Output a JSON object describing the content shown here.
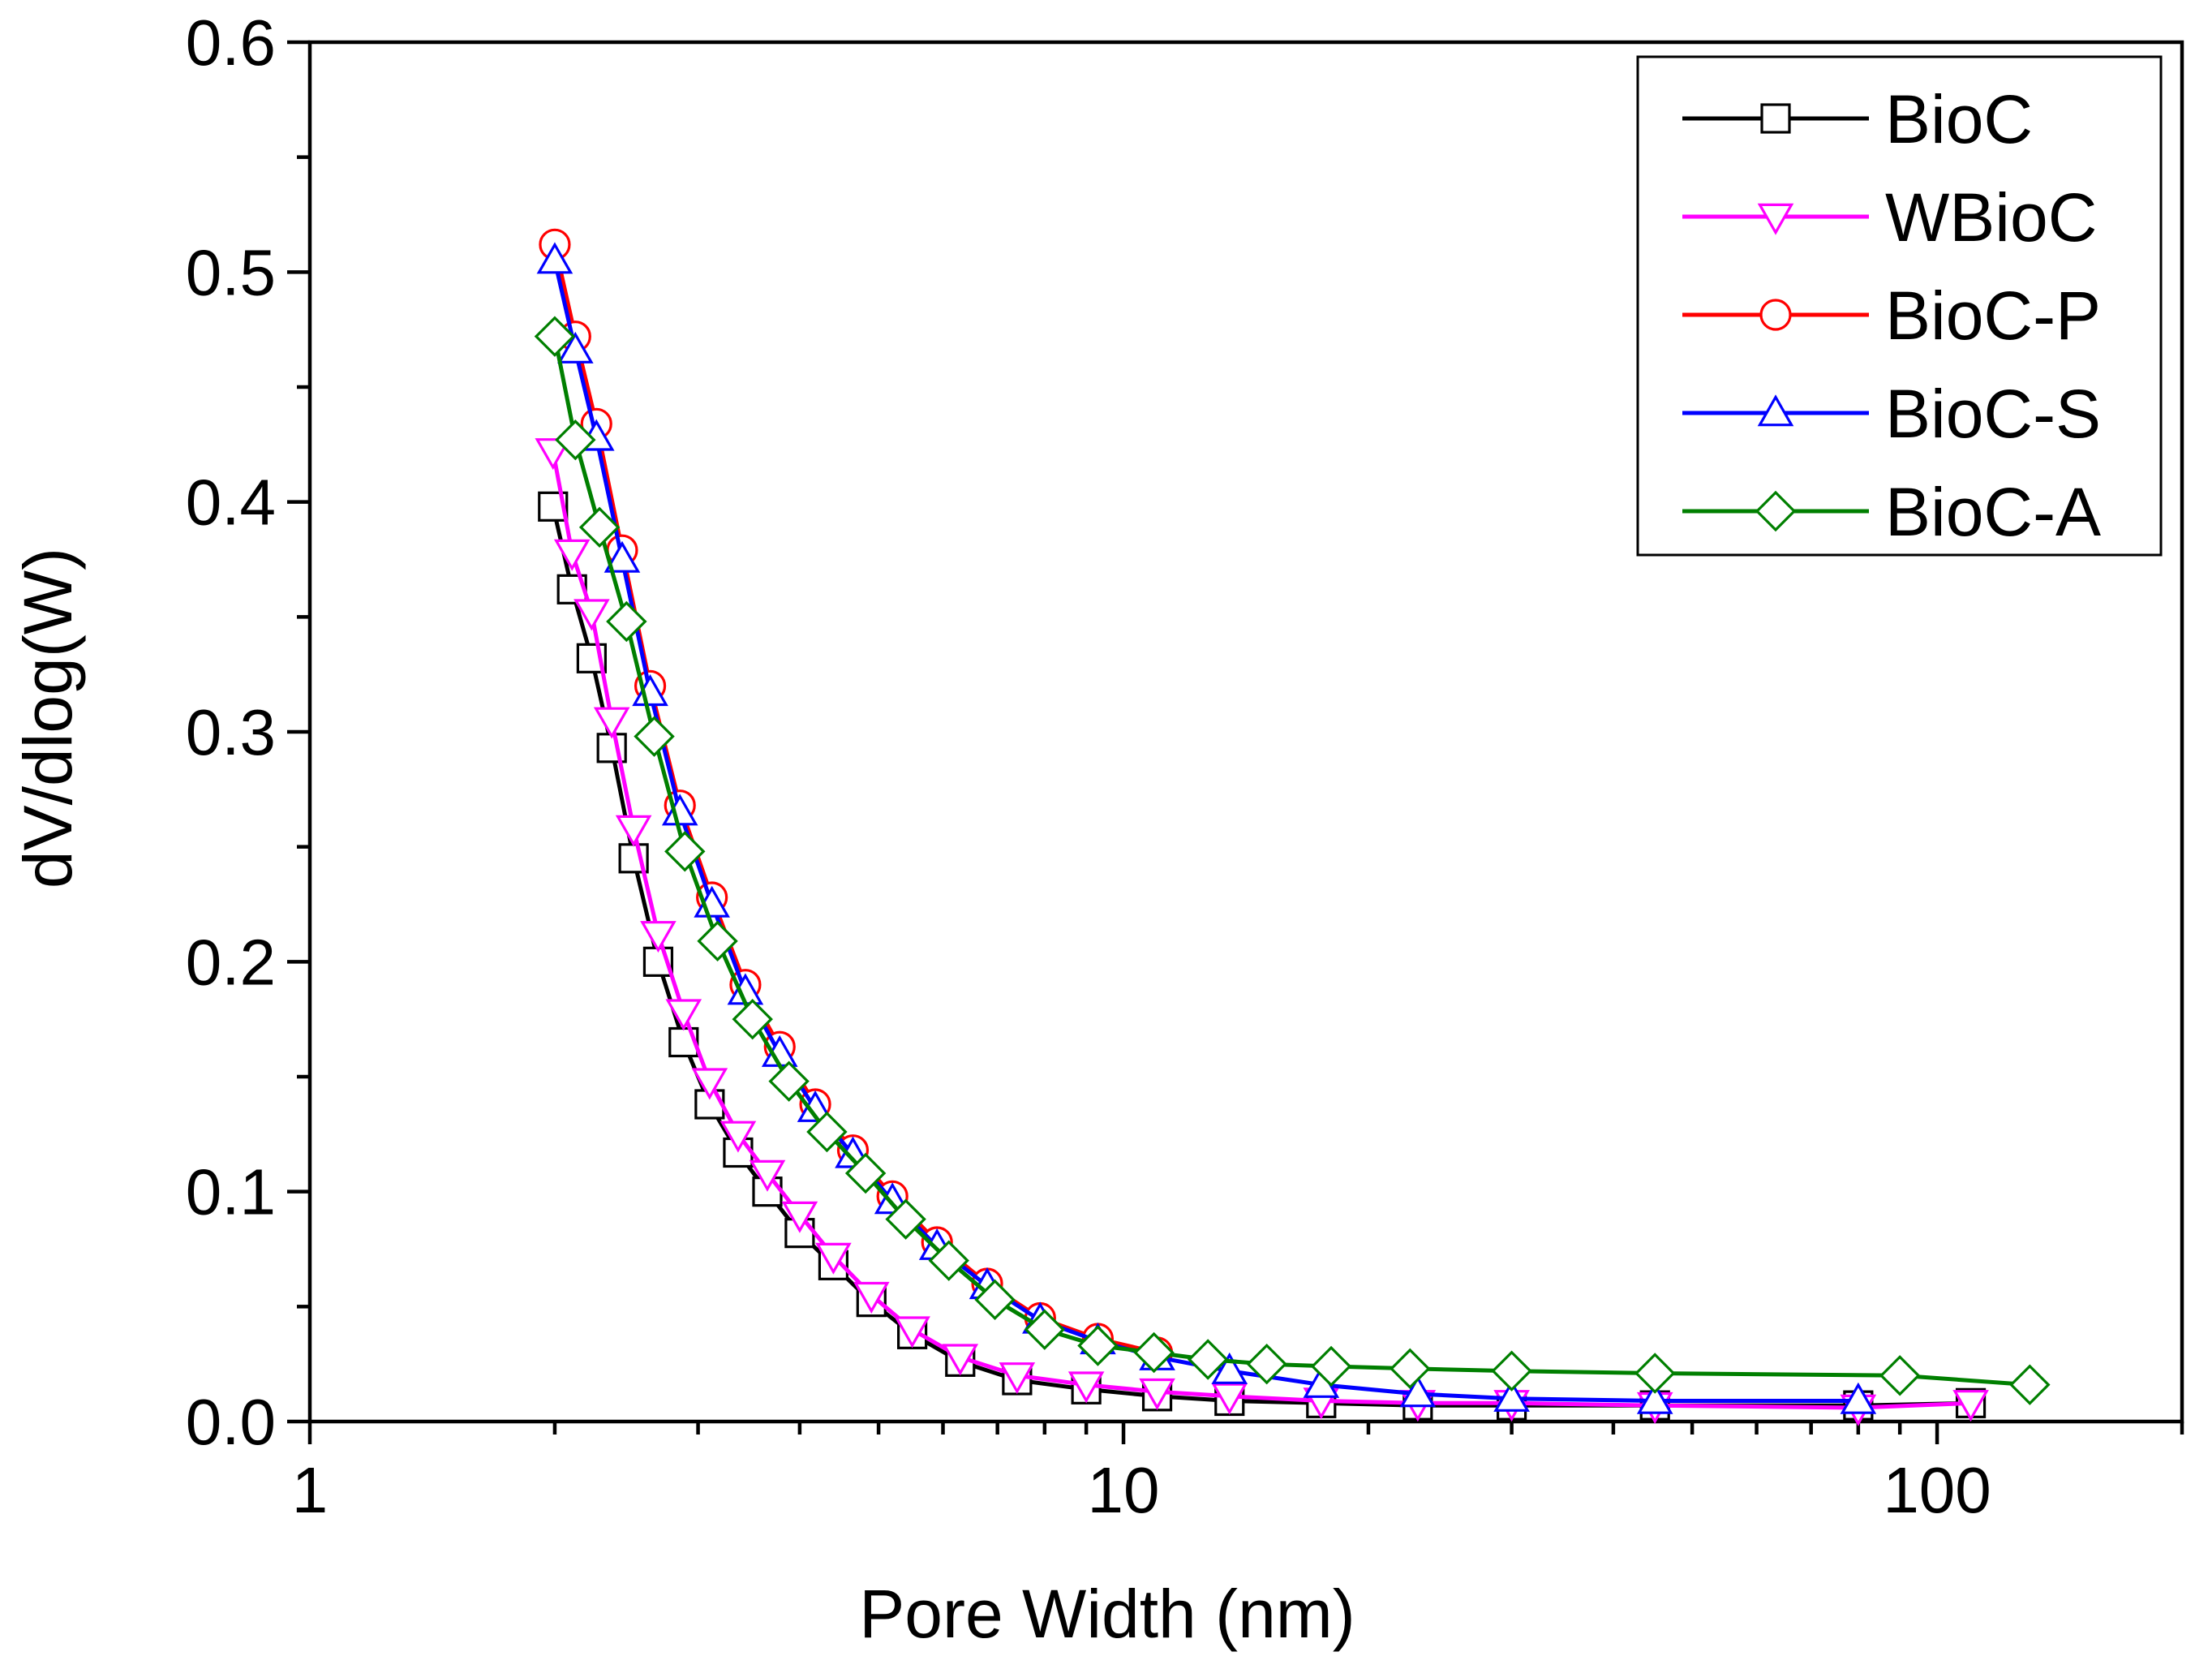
{
  "chart_data": {
    "type": "line",
    "title": "",
    "xlabel": "Pore Width (nm)",
    "ylabel": "dV/dlog(W)",
    "xscale": "log",
    "xlim": [
      1,
      200
    ],
    "ylim": [
      0,
      0.6
    ],
    "xticks": [
      1,
      10,
      100
    ],
    "xtick_labels": [
      "1",
      "10",
      "100"
    ],
    "yticks": [
      0,
      0.1,
      0.2,
      0.3,
      0.4,
      0.5,
      0.6
    ],
    "ytick_labels": [
      "0.0",
      "0.1",
      "0.2",
      "0.3",
      "0.4",
      "0.5",
      "0.6"
    ],
    "grid": false,
    "legend_position": "top-right",
    "series": [
      {
        "name": "BioC",
        "color": "#000000",
        "marker": "square",
        "x": [
          1.99,
          2.1,
          2.22,
          2.35,
          2.5,
          2.68,
          2.88,
          3.1,
          3.36,
          3.65,
          4.0,
          4.4,
          4.9,
          5.5,
          6.3,
          7.4,
          9.0,
          11.0,
          13.5,
          17.5,
          23,
          30,
          45,
          80,
          110
        ],
        "y": [
          0.398,
          0.362,
          0.332,
          0.293,
          0.245,
          0.2,
          0.165,
          0.138,
          0.117,
          0.1,
          0.082,
          0.068,
          0.052,
          0.038,
          0.026,
          0.018,
          0.014,
          0.011,
          0.009,
          0.008,
          0.007,
          0.007,
          0.007,
          0.007,
          0.008
        ]
      },
      {
        "name": "WBioC",
        "color": "#ff00ff",
        "marker": "triangle-down",
        "x": [
          1.99,
          2.1,
          2.22,
          2.35,
          2.5,
          2.68,
          2.88,
          3.1,
          3.36,
          3.65,
          4.0,
          4.4,
          4.9,
          5.5,
          6.3,
          7.4,
          9.0,
          11.0,
          13.5,
          17.5,
          23,
          30,
          45,
          80,
          110
        ],
        "y": [
          0.422,
          0.378,
          0.352,
          0.305,
          0.258,
          0.212,
          0.178,
          0.148,
          0.125,
          0.108,
          0.09,
          0.072,
          0.055,
          0.04,
          0.028,
          0.02,
          0.016,
          0.013,
          0.011,
          0.009,
          0.008,
          0.008,
          0.007,
          0.006,
          0.008
        ]
      },
      {
        "name": "BioC-P",
        "color": "#ff0000",
        "marker": "circle",
        "x": [
          2.0,
          2.12,
          2.25,
          2.42,
          2.62,
          2.85,
          3.12,
          3.43,
          3.78,
          4.18,
          4.65,
          5.2,
          5.9,
          6.8,
          7.9,
          9.3,
          11.0
        ],
        "y": [
          0.512,
          0.472,
          0.434,
          0.379,
          0.32,
          0.268,
          0.228,
          0.19,
          0.163,
          0.138,
          0.118,
          0.098,
          0.078,
          0.06,
          0.045,
          0.036,
          0.03
        ]
      },
      {
        "name": "BioC-S",
        "color": "#0000ff",
        "marker": "triangle-up",
        "x": [
          2.0,
          2.12,
          2.25,
          2.42,
          2.62,
          2.85,
          3.12,
          3.43,
          3.78,
          4.18,
          4.65,
          5.2,
          5.9,
          6.8,
          7.9,
          9.3,
          11.0,
          13.5,
          17.5,
          23,
          30,
          45,
          80
        ],
        "y": [
          0.505,
          0.466,
          0.428,
          0.375,
          0.317,
          0.265,
          0.225,
          0.187,
          0.16,
          0.136,
          0.116,
          0.096,
          0.076,
          0.059,
          0.044,
          0.035,
          0.028,
          0.022,
          0.016,
          0.012,
          0.01,
          0.009,
          0.009
        ]
      },
      {
        "name": "BioC-A",
        "color": "#007f00",
        "marker": "diamond",
        "x": [
          2.0,
          2.12,
          2.27,
          2.45,
          2.65,
          2.89,
          3.17,
          3.5,
          3.88,
          4.32,
          4.82,
          5.4,
          6.1,
          6.95,
          8.0,
          9.3,
          10.9,
          12.7,
          15.0,
          18.0,
          22.5,
          30,
          45,
          90,
          130
        ],
        "y": [
          0.472,
          0.427,
          0.389,
          0.348,
          0.298,
          0.248,
          0.209,
          0.175,
          0.148,
          0.126,
          0.108,
          0.088,
          0.07,
          0.053,
          0.04,
          0.033,
          0.03,
          0.027,
          0.025,
          0.024,
          0.023,
          0.022,
          0.021,
          0.02,
          0.016
        ]
      }
    ]
  }
}
